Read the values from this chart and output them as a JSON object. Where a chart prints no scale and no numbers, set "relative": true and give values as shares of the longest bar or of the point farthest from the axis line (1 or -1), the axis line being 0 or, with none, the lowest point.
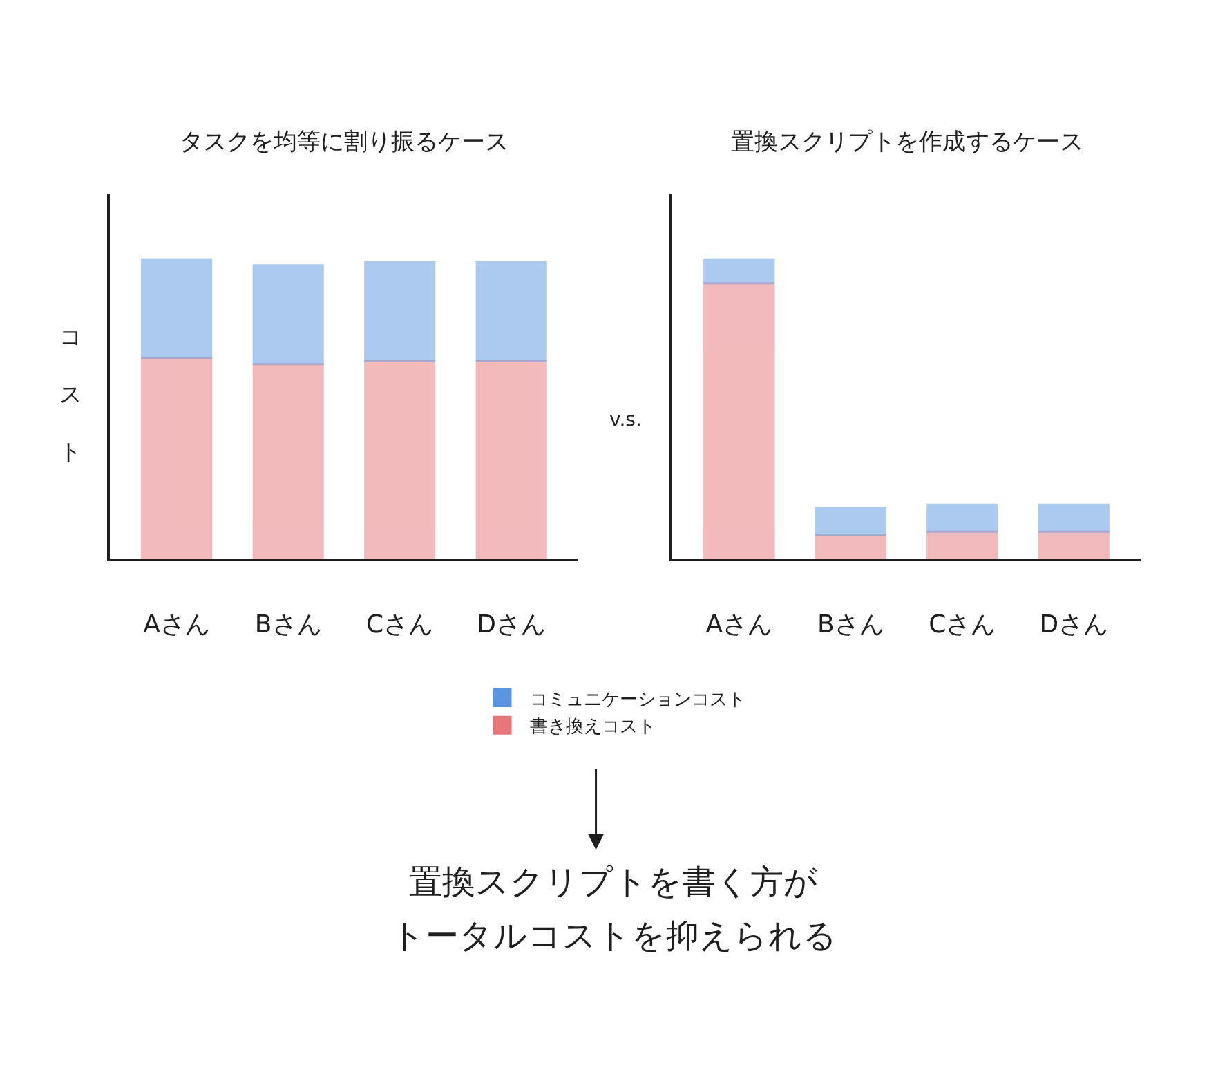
{
  "chart_data": [
    {
      "type": "bar",
      "title": "タスクを均等に割り振るケース",
      "ylabel": "コスト",
      "stacked": true,
      "relative": true,
      "legend": "bottom",
      "categories": [
        "Aさん",
        "Bさん",
        "Cさん",
        "Dさん"
      ],
      "series": [
        {
          "name": "書き換えコスト",
          "color": "#e8777c",
          "values": [
            0.67,
            0.65,
            0.66,
            0.66
          ]
        },
        {
          "name": "コミュニケーションコスト",
          "color": "#5b95e0",
          "values": [
            0.33,
            0.33,
            0.33,
            0.33
          ]
        }
      ],
      "annotations": [
        "v.s.",
        "置換スクリプトを書く方が",
        "トータルコストを抑えられる"
      ]
    },
    {
      "type": "bar",
      "title": "置換スクリプトを作成するケース",
      "stacked": true,
      "relative": true,
      "categories": [
        "Aさん",
        "Bさん",
        "Cさん",
        "Dさん"
      ],
      "series": [
        {
          "color": "#e8777c",
          "values": [
            0.92,
            0.08,
            0.09,
            0.09
          ]
        },
        {
          "color": "#5b95e0",
          "values": [
            0.08,
            0.09,
            0.09,
            0.09
          ]
        }
      ]
    }
  ]
}
